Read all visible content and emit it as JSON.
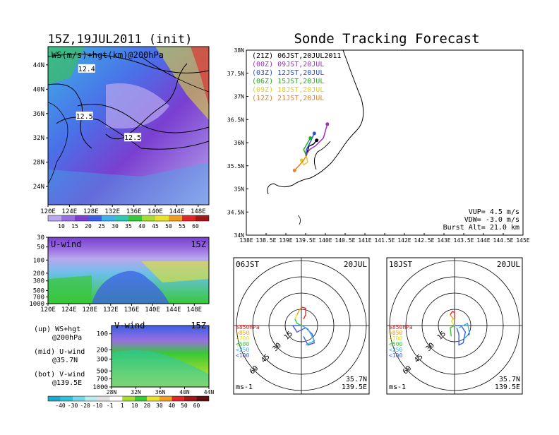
{
  "header": {
    "left_title": "15Z,19JUL2011 (init)",
    "right_title": "Sonde Tracking Forecast"
  },
  "colors": {
    "lavender": "#b9a8ee",
    "violet": "#9b6fe0",
    "purple": "#7a3fd0",
    "blue": "#3c5fe6",
    "cyan": "#3fb0e8",
    "teal": "#2ec8b4",
    "green": "#38c838",
    "lime": "#a8dc30",
    "yellow": "#e8e22c",
    "orange": "#f0a020",
    "red": "#e02828"
  },
  "chart_data": [
    {
      "type": "heatmap",
      "panel": "map",
      "label": "WS(m/s)+hgt(km)@200hPa",
      "x_ticks": [
        "120E",
        "124E",
        "128E",
        "132E",
        "136E",
        "140E",
        "144E",
        "148E"
      ],
      "y_ticks": [
        "24N",
        "28N",
        "32N",
        "36N",
        "40N",
        "44N"
      ],
      "xlim": [
        120,
        150
      ],
      "ylim": [
        21,
        47
      ],
      "contour_labels": [
        {
          "text": "12.4",
          "lon": 127.2,
          "lat": 43.3
        },
        {
          "text": "12.5",
          "lon": 126.8,
          "lat": 35.5
        },
        {
          "text": "12.5",
          "lon": 135.8,
          "lat": 32.0
        }
      ],
      "colorbar": [
        "10",
        "15",
        "20",
        "25",
        "30",
        "35",
        "40",
        "45",
        "50",
        "55",
        "60"
      ]
    },
    {
      "type": "heatmap",
      "panel": "u-wind",
      "label": "U-wind",
      "time": "15Z",
      "x_ticks": [
        "120E",
        "124E",
        "128E",
        "132E",
        "136E",
        "140E",
        "144E",
        "148E"
      ],
      "y_ticks": [
        "30",
        "50",
        "100",
        "200",
        "300",
        "500",
        "700",
        "1000"
      ]
    },
    {
      "type": "heatmap",
      "panel": "v-wind",
      "label": "V-wind",
      "time": "15Z",
      "x_ticks": [
        "28N",
        "32N",
        "36N",
        "40N",
        "44N"
      ],
      "y_ticks": [
        "100",
        "200",
        "300",
        "500",
        "700",
        "1000"
      ],
      "colorbar": [
        "-40",
        "-30",
        "-20",
        "-10",
        "-1",
        "1",
        "10",
        "20",
        "30",
        "40",
        "50",
        "60"
      ]
    },
    {
      "type": "line",
      "panel": "sonde-tracking",
      "x_ticks": [
        "138E",
        "138.5E",
        "139E",
        "139.5E",
        "140E",
        "140.5E",
        "141E",
        "141.5E",
        "142E",
        "142.5E",
        "143E",
        "143.5E",
        "144E",
        "144.5E",
        "145E"
      ],
      "y_ticks": [
        "34N",
        "34.5N",
        "35N",
        "35.5N",
        "36N",
        "36.5N",
        "37N",
        "37.5N",
        "38N"
      ],
      "xlim": [
        138,
        145
      ],
      "ylim": [
        34,
        38
      ],
      "series": [
        {
          "name": "(21Z) 06JST,20JUL2011",
          "color": "#000000",
          "points": [
            [
              139.52,
              35.72
            ],
            [
              139.55,
              35.82
            ],
            [
              139.58,
              35.92
            ],
            [
              139.7,
              35.97
            ],
            [
              139.78,
              36.05
            ]
          ]
        },
        {
          "name": "(00Z) 09JST,20JUL",
          "color": "#9b30c8",
          "points": [
            [
              139.5,
              35.72
            ],
            [
              139.6,
              35.85
            ],
            [
              139.75,
              35.93
            ],
            [
              139.95,
              36.1
            ],
            [
              140.05,
              36.4
            ]
          ]
        },
        {
          "name": "(03Z) 12JST,20JUL",
          "color": "#2850e0",
          "points": [
            [
              139.5,
              35.72
            ],
            [
              139.52,
              35.85
            ],
            [
              139.6,
              35.98
            ],
            [
              139.72,
              36.2
            ]
          ]
        },
        {
          "name": "(06Z) 15JST,20JUL",
          "color": "#20b020",
          "points": [
            [
              139.52,
              35.72
            ],
            [
              139.45,
              35.85
            ],
            [
              139.52,
              35.95
            ],
            [
              139.62,
              36.1
            ]
          ]
        },
        {
          "name": "(09Z) 18JST,20JUL",
          "color": "#e0d020",
          "points": [
            [
              139.52,
              35.72
            ],
            [
              139.55,
              35.58
            ],
            [
              139.45,
              35.52
            ],
            [
              139.4,
              35.62
            ]
          ]
        },
        {
          "name": "(12Z) 21JST,20JUL",
          "color": "#f08020",
          "points": [
            [
              139.52,
              35.72
            ],
            [
              139.45,
              35.62
            ],
            [
              139.35,
              35.52
            ],
            [
              139.22,
              35.4
            ]
          ]
        }
      ],
      "annotations": [
        "VUP= 4.5 m/s",
        "VDW= -3.0 m/s",
        "Burst Alt= 21.0 km"
      ]
    },
    {
      "type": "line",
      "panel": "hodograph-06",
      "time_left": "06JST",
      "time_right": "20JUL",
      "ring_labels": [
        "15",
        "30",
        "45",
        "60"
      ],
      "legend": [
        "≥850hPa",
        "<850",
        "<700",
        "<500",
        "<250",
        "<100"
      ],
      "unit": "ms-1",
      "location": [
        "35.7N",
        "139.5E"
      ]
    },
    {
      "type": "line",
      "panel": "hodograph-18",
      "time_left": "18JST",
      "time_right": "20JUL",
      "ring_labels": [
        "15",
        "30",
        "45",
        "60"
      ],
      "legend": [
        "≥850hPa",
        "<850",
        "<700",
        "<500",
        "<250",
        "<100"
      ],
      "unit": "ms-1",
      "location": [
        "35.7N",
        "139.5E"
      ]
    }
  ],
  "side_legend": [
    {
      "label": "(up) WS+hgt",
      "sub": "@200hPa"
    },
    {
      "label": "(mid) U-wind",
      "sub": "@35.7N"
    },
    {
      "label": "(bot) V-wind",
      "sub": "@139.5E"
    }
  ]
}
